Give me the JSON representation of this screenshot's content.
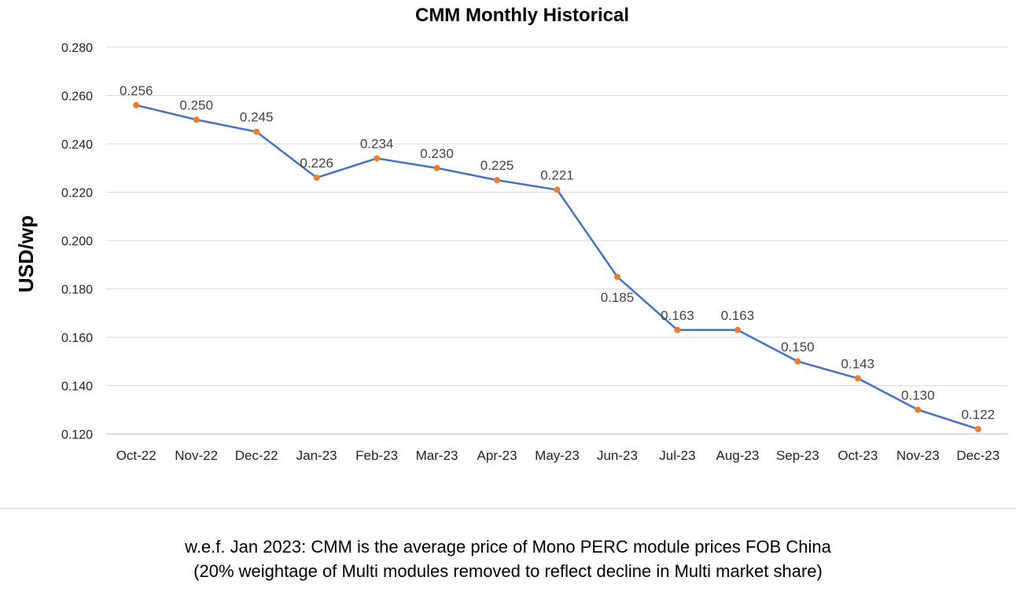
{
  "chart_data": {
    "type": "line",
    "title": "CMM Monthly Historical",
    "xlabel": "",
    "ylabel": "USD/wp",
    "ylim": [
      0.12,
      0.28
    ],
    "yticks": [
      "0.120",
      "0.140",
      "0.160",
      "0.180",
      "0.200",
      "0.220",
      "0.240",
      "0.260",
      "0.280"
    ],
    "ytick_values": [
      0.12,
      0.14,
      0.16,
      0.18,
      0.2,
      0.22,
      0.24,
      0.26,
      0.28
    ],
    "categories": [
      "Oct-22",
      "Nov-22",
      "Dec-22",
      "Jan-23",
      "Feb-23",
      "Mar-23",
      "Apr-23",
      "May-23",
      "Jun-23",
      "Jul-23",
      "Aug-23",
      "Sep-23",
      "Oct-23",
      "Nov-23",
      "Dec-23"
    ],
    "series": [
      {
        "values": [
          0.256,
          0.25,
          0.245,
          0.226,
          0.234,
          0.23,
          0.225,
          0.221,
          0.185,
          0.163,
          0.163,
          0.15,
          0.143,
          0.13,
          0.122
        ],
        "labels": [
          "0.256",
          "0.250",
          "0.245",
          "0.226",
          "0.234",
          "0.230",
          "0.225",
          "0.221",
          "0.185",
          "0.163",
          "0.163",
          "0.150",
          "0.143",
          "0.130",
          "0.122"
        ],
        "line_color": "#4472c4",
        "marker_color": "#ed7d31"
      }
    ],
    "grid": true,
    "legend": "none"
  },
  "footnote": {
    "line1": "w.e.f. Jan 2023: CMM is the average price of Mono PERC module prices FOB China",
    "line2": "(20% weightage of Multi modules removed to reflect decline in Multi market share)"
  }
}
